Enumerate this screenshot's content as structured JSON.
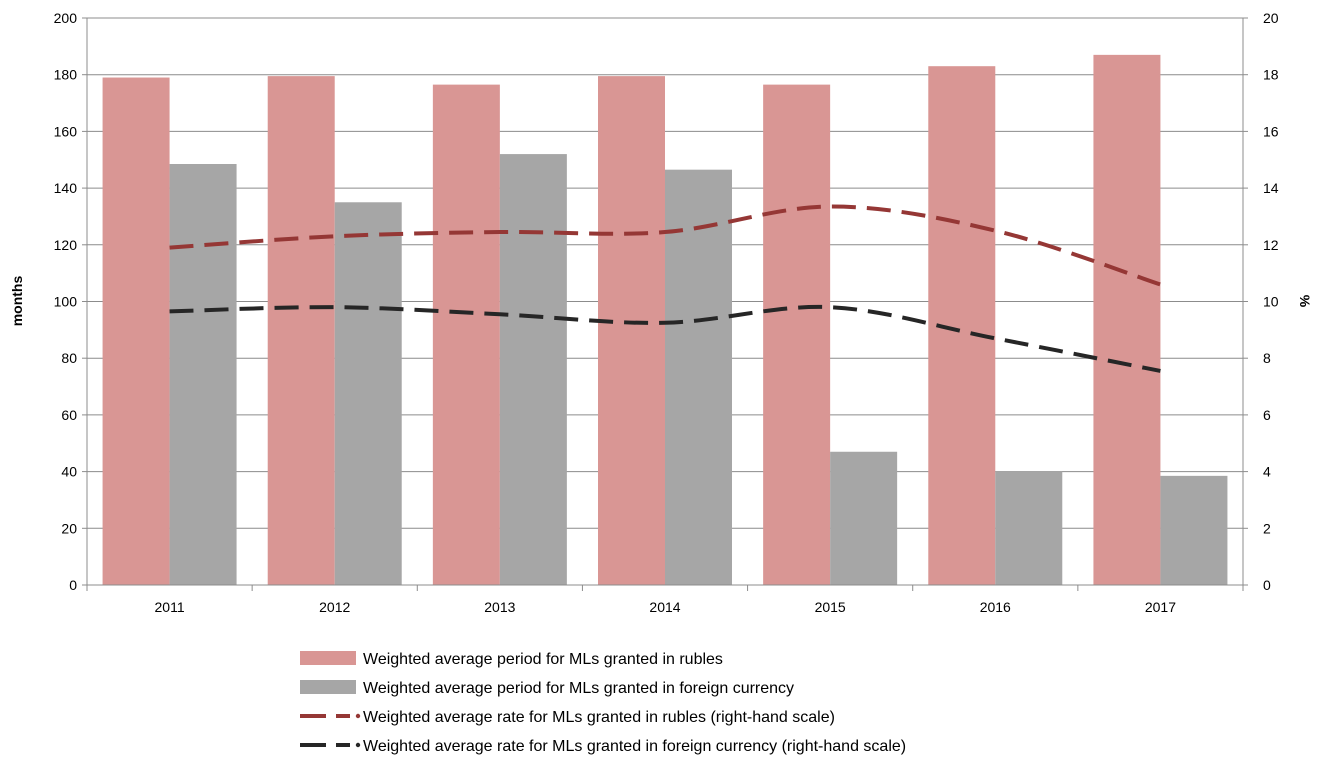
{
  "chart_data": {
    "type": "bar",
    "categories": [
      "2011",
      "2012",
      "2013",
      "2014",
      "2015",
      "2016",
      "2017"
    ],
    "series": [
      {
        "name": "Weighted average period for MLs granted in rubles",
        "type": "bar",
        "axis": "left",
        "color": "#d99694",
        "values": [
          179,
          179.5,
          176.5,
          179.5,
          176.5,
          183,
          187
        ]
      },
      {
        "name": "Weighted average period for MLs granted in foreign currency",
        "type": "bar",
        "axis": "left",
        "color": "#a6a6a6",
        "values": [
          148.5,
          135,
          152,
          146.5,
          47,
          40,
          38.5
        ]
      },
      {
        "name": "Weighted average rate for MLs granted in rubles (right-hand scale)",
        "type": "line",
        "style": "dashed",
        "axis": "right",
        "color": "#953735",
        "values": [
          11.9,
          12.3,
          12.45,
          12.45,
          13.35,
          12.5,
          10.6
        ]
      },
      {
        "name": "Weighted average rate for MLs granted in foreign currency (right-hand scale)",
        "type": "line",
        "style": "dashed",
        "axis": "right",
        "color": "#262626",
        "values": [
          9.65,
          9.8,
          9.55,
          9.25,
          9.8,
          8.7,
          7.55
        ]
      }
    ],
    "ylabel": "months",
    "y2label": "%",
    "ylim": [
      0,
      200
    ],
    "y2lim": [
      0,
      20
    ],
    "yticks": [
      0,
      20,
      40,
      60,
      80,
      100,
      120,
      140,
      160,
      180,
      200
    ],
    "y2ticks": [
      0,
      2,
      4,
      6,
      8,
      10,
      12,
      14,
      16,
      18,
      20
    ],
    "grid": true,
    "legend_position": "bottom"
  }
}
